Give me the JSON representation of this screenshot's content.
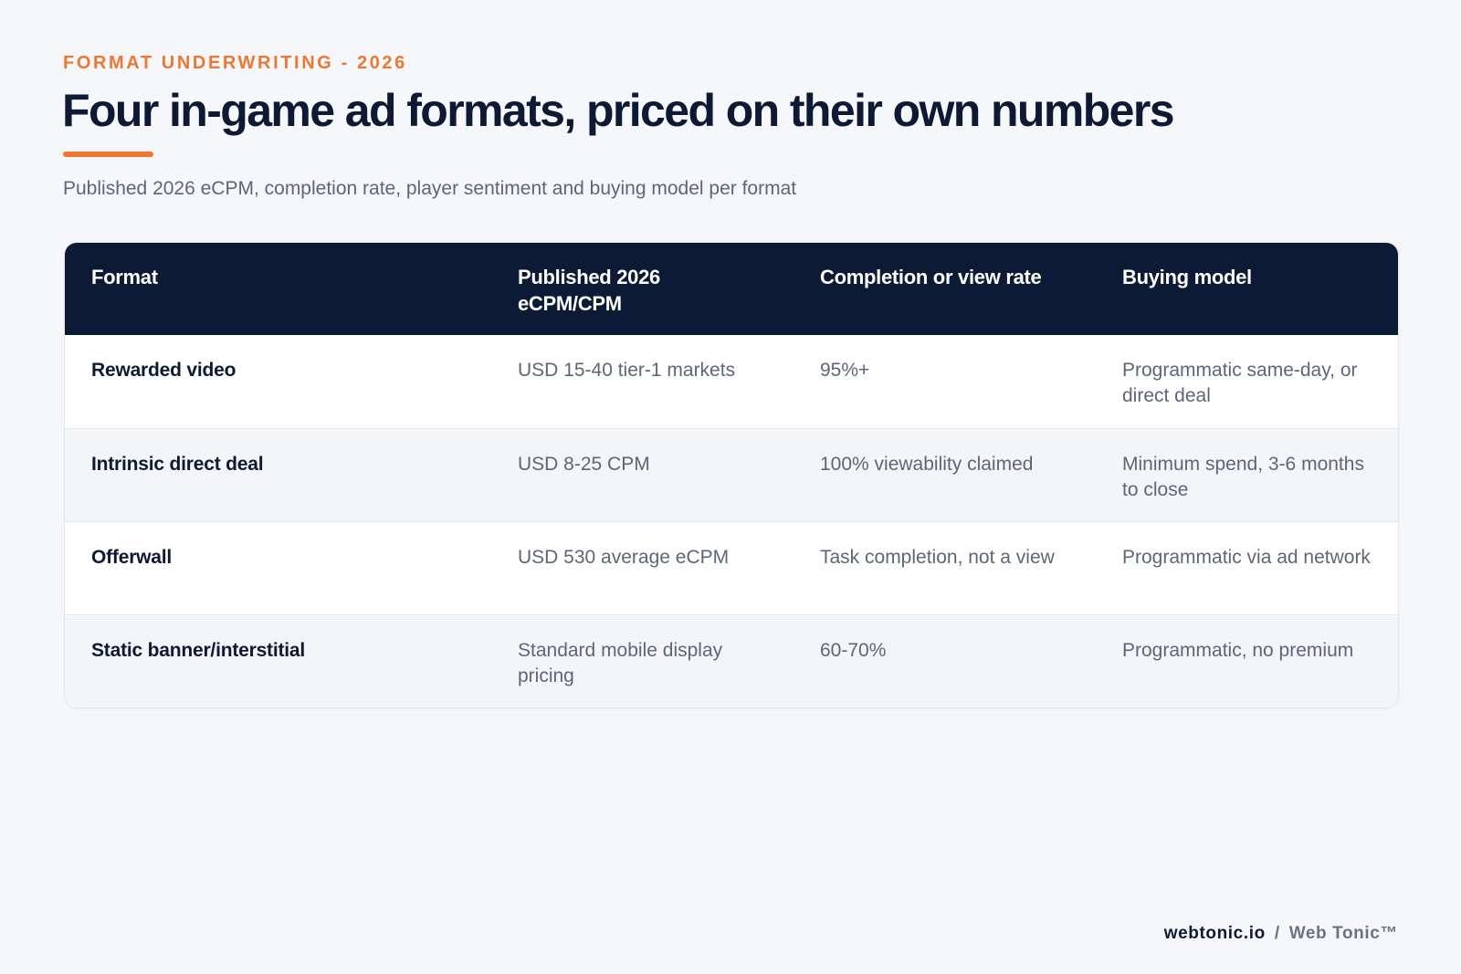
{
  "header": {
    "eyebrow": "FORMAT UNDERWRITING - 2026",
    "title": "Four in-game ad formats, priced on their own numbers",
    "subtitle": "Published 2026 eCPM, completion rate, player sentiment and buying model per format",
    "accent_color": "#ee7733"
  },
  "table": {
    "header_bg": "#0c1a35",
    "columns": [
      "Format",
      "Published 2026 eCPM/CPM",
      "Completion or view rate",
      "Buying model"
    ],
    "rows": [
      {
        "format": "Rewarded video",
        "ecpm": "USD 15-40 tier-1 markets",
        "rate": "95%+",
        "buying": "Programmatic same-day, or direct deal"
      },
      {
        "format": "Intrinsic direct deal",
        "ecpm": "USD 8-25 CPM",
        "rate": "100% viewability claimed",
        "buying": "Minimum spend, 3-6 months to close"
      },
      {
        "format": "Offerwall",
        "ecpm": "USD 530 average eCPM",
        "rate": "Task completion, not a view",
        "buying": "Programmatic via ad network"
      },
      {
        "format": "Static banner/interstitial",
        "ecpm": "Standard mobile display pricing",
        "rate": "60-70%",
        "buying": "Programmatic, no premium"
      }
    ]
  },
  "footer": {
    "domain": "webtonic.io",
    "separator": "/",
    "brand": "Web Tonic™"
  }
}
